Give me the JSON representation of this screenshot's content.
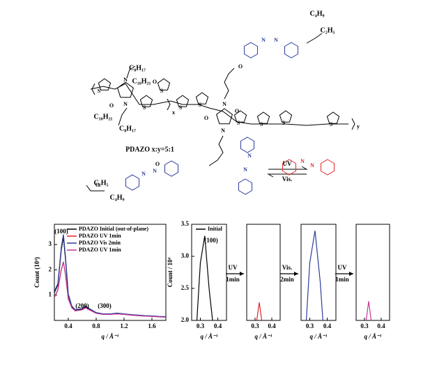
{
  "structure": {
    "chains": [
      "C₄H₉",
      "C₂H₅",
      "C₈H₁₇",
      "C₁₀H₂₁",
      "C₁₀H₂₁",
      "C₈H₁₇",
      "C₂H₅",
      "C₄H₉"
    ],
    "subscripts": [
      "x",
      "y"
    ],
    "atoms": [
      "S",
      "S",
      "S",
      "S",
      "S",
      "S",
      "S",
      "S",
      "S",
      "N",
      "N",
      "N",
      "N",
      "O",
      "O",
      "O",
      "O",
      "O",
      "O",
      "O",
      "N",
      "N",
      "N",
      "N",
      "N",
      "N",
      "N",
      "N"
    ],
    "name": "PDAZO x:y=5:1",
    "switch": [
      "UV",
      "Vis."
    ]
  },
  "chart_data": [
    {
      "type": "line",
      "xlabel": "q / Å⁻¹",
      "ylabel": "Count (10⁴)",
      "xlim": [
        0.2,
        1.8
      ],
      "ylim": [
        0,
        3.8
      ],
      "xticks": [
        0.4,
        0.8,
        1.2,
        1.6
      ],
      "yticks": [
        1,
        2,
        3
      ],
      "x": [
        0.2,
        0.25,
        0.3,
        0.33,
        0.36,
        0.4,
        0.45,
        0.5,
        0.6,
        0.65,
        0.7,
        0.8,
        0.9,
        1.0,
        1.1,
        1.2,
        1.3,
        1.4,
        1.5,
        1.6,
        1.7,
        1.8
      ],
      "series": [
        {
          "name": "PDAZO Initial (out-of-plane)",
          "color": "#000000",
          "values": [
            1.1,
            1.4,
            2.8,
            3.3,
            2.4,
            1.0,
            0.55,
            0.4,
            0.45,
            0.55,
            0.45,
            0.3,
            0.25,
            0.25,
            0.28,
            0.25,
            0.22,
            0.2,
            0.18,
            0.17,
            0.15,
            0.14
          ]
        },
        {
          "name": "PDAZO UV 1min",
          "color": "#e0262a",
          "values": [
            0.9,
            1.2,
            2.0,
            2.3,
            1.8,
            0.85,
            0.5,
            0.38,
            0.42,
            0.5,
            0.42,
            0.28,
            0.24,
            0.24,
            0.26,
            0.24,
            0.21,
            0.19,
            0.17,
            0.16,
            0.14,
            0.13
          ]
        },
        {
          "name": "PDAZO Vis 2min",
          "color": "#2b3d9c",
          "values": [
            1.15,
            1.45,
            2.9,
            3.4,
            2.5,
            1.05,
            0.57,
            0.42,
            0.47,
            0.57,
            0.47,
            0.31,
            0.26,
            0.26,
            0.29,
            0.26,
            0.23,
            0.21,
            0.19,
            0.18,
            0.16,
            0.15
          ]
        },
        {
          "name": "PDAZO UV 1min",
          "color": "#c0379a",
          "values": [
            0.92,
            1.22,
            2.02,
            2.32,
            1.82,
            0.86,
            0.5,
            0.38,
            0.42,
            0.5,
            0.42,
            0.28,
            0.24,
            0.24,
            0.26,
            0.24,
            0.21,
            0.19,
            0.17,
            0.16,
            0.14,
            0.13
          ]
        }
      ],
      "legend": "upper right",
      "annotations": [
        "(100)",
        "(200)",
        "(300)"
      ]
    },
    {
      "type": "line",
      "xlabel": "q / Å⁻¹",
      "ylabel": "Count / 10⁴",
      "xlim": [
        0.25,
        0.45
      ],
      "ylim": [
        2.0,
        3.5
      ],
      "xticks": [
        0.3,
        0.4
      ],
      "yticks": [
        {
          "value": 2.0,
          "label": "2.0"
        },
        {
          "value": 2.5,
          "label": "2.5"
        },
        {
          "value": 3.0,
          "label": "3.0"
        },
        {
          "value": 3.5,
          "label": "3.5"
        }
      ],
      "x": [
        0.28,
        0.3,
        0.325,
        0.35,
        0.37
      ],
      "series": [
        {
          "name": "Initial",
          "color": "#000000",
          "values": [
            2.0,
            2.9,
            3.32,
            2.5,
            2.0
          ]
        }
      ],
      "legend": "upper left",
      "annotations": [
        "(100)"
      ]
    },
    {
      "type": "line",
      "xlabel": "q / Å⁻¹",
      "xlim": [
        0.25,
        0.45
      ],
      "ylim": [
        2.0,
        3.5
      ],
      "xticks": [
        0.3,
        0.4
      ],
      "x": [
        0.31,
        0.325,
        0.34
      ],
      "series": [
        {
          "color": "#e0262a",
          "values": [
            2.0,
            2.28,
            2.0
          ]
        }
      ],
      "step": [
        "UV",
        "1min"
      ]
    },
    {
      "type": "line",
      "xlabel": "q / Å⁻¹",
      "xlim": [
        0.25,
        0.45
      ],
      "ylim": [
        2.0,
        3.5
      ],
      "xticks": [
        0.3,
        0.4
      ],
      "x": [
        0.28,
        0.3,
        0.33,
        0.36,
        0.375
      ],
      "series": [
        {
          "color": "#2b3d9c",
          "values": [
            2.0,
            2.9,
            3.4,
            2.6,
            2.0
          ]
        }
      ],
      "step": [
        "Vis.",
        "2min"
      ]
    },
    {
      "type": "line",
      "xlabel": "q / Å⁻¹",
      "xlim": [
        0.25,
        0.45
      ],
      "ylim": [
        2.0,
        3.5
      ],
      "xticks": [
        0.3,
        0.4
      ],
      "x": [
        0.31,
        0.325,
        0.34
      ],
      "series": [
        {
          "color": "#c0379a",
          "values": [
            2.0,
            2.3,
            2.0
          ]
        }
      ],
      "step": [
        "UV",
        "1min"
      ]
    }
  ]
}
